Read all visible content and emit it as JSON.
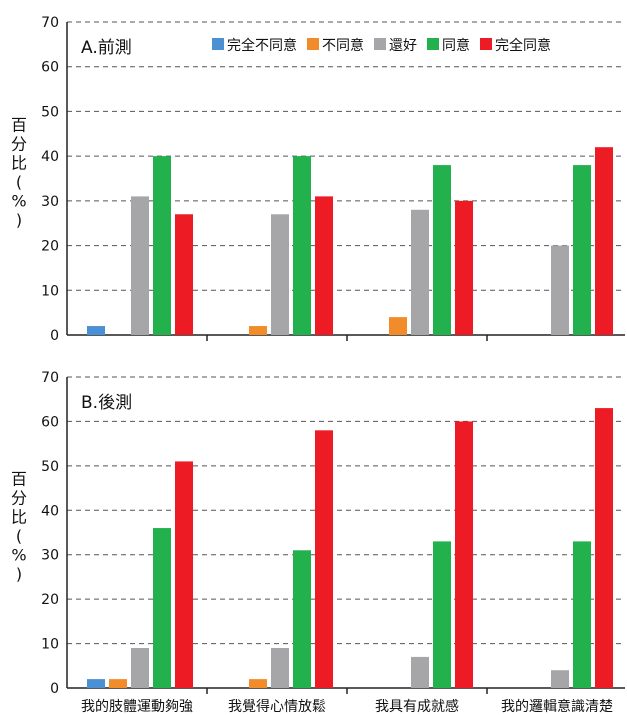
{
  "chart_data": [
    {
      "type": "bar",
      "title": "A.前測",
      "ylabel_chars": [
        "百",
        "分",
        "比",
        "(",
        "%",
        ")"
      ],
      "ylim": [
        0,
        70
      ],
      "yticks": [
        0,
        10,
        20,
        30,
        40,
        50,
        60,
        70
      ],
      "grid": true,
      "legend_position": "top-right",
      "categories": [
        "我的肢體運動夠強",
        "我覺得心情放鬆",
        "我具有成就感",
        "我的邏輯意識清楚"
      ],
      "show_category_labels": false,
      "series": [
        {
          "name": "完全不同意",
          "color": "#4a90d2",
          "values": [
            2,
            0,
            0,
            0
          ]
        },
        {
          "name": "不同意",
          "color": "#f28c2a",
          "values": [
            0,
            2,
            4,
            0
          ]
        },
        {
          "name": "還好",
          "color": "#a6a6a8",
          "values": [
            31,
            27,
            28,
            20
          ]
        },
        {
          "name": "同意",
          "color": "#22b14c",
          "values": [
            40,
            40,
            38,
            38
          ]
        },
        {
          "name": "完全同意",
          "color": "#ed1c24",
          "values": [
            27,
            31,
            30,
            42
          ]
        }
      ]
    },
    {
      "type": "bar",
      "title": "B.後測",
      "ylabel_chars": [
        "百",
        "分",
        "比",
        "(",
        "%",
        ")"
      ],
      "ylim": [
        0,
        70
      ],
      "yticks": [
        0,
        10,
        20,
        30,
        40,
        50,
        60,
        70
      ],
      "grid": true,
      "categories": [
        "我的肢體運動夠強",
        "我覺得心情放鬆",
        "我具有成就感",
        "我的邏輯意識清楚"
      ],
      "show_category_labels": true,
      "series": [
        {
          "name": "完全不同意",
          "color": "#4a90d2",
          "values": [
            2,
            0,
            0,
            0
          ]
        },
        {
          "name": "不同意",
          "color": "#f28c2a",
          "values": [
            2,
            2,
            0,
            0
          ]
        },
        {
          "name": "還好",
          "color": "#a6a6a8",
          "values": [
            9,
            9,
            7,
            4
          ]
        },
        {
          "name": "同意",
          "color": "#22b14c",
          "values": [
            36,
            31,
            33,
            33
          ]
        },
        {
          "name": "完全同意",
          "color": "#ed1c24",
          "values": [
            51,
            58,
            60,
            63
          ]
        }
      ]
    }
  ]
}
